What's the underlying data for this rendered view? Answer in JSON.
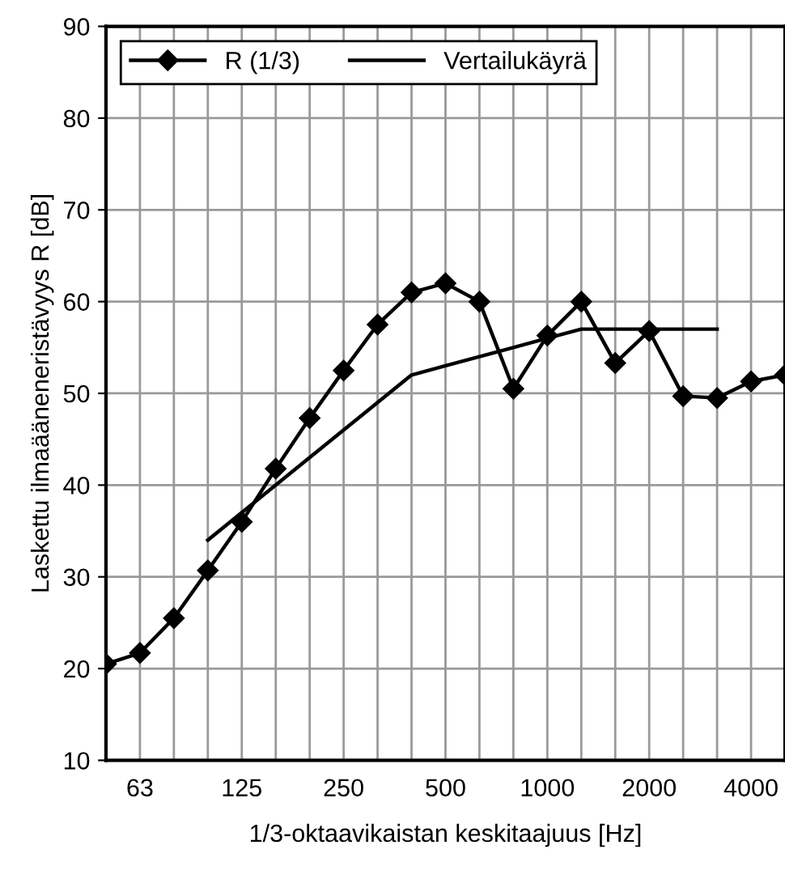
{
  "chart_data": {
    "type": "line",
    "categories": [
      null,
      "63",
      null,
      null,
      "125",
      null,
      null,
      "250",
      null,
      null,
      "500",
      null,
      null,
      "1000",
      null,
      null,
      "2000",
      null,
      null,
      "4000",
      null
    ],
    "xlabel": "1/3-oktaavikaistan keskitaajuus [Hz]",
    "ylabel": "Laskettu ilmaääneneristävyys R [dB]",
    "ylim": [
      10,
      90
    ],
    "yticks": [
      10,
      20,
      30,
      40,
      50,
      60,
      70,
      80,
      90
    ],
    "grid": true,
    "legend": "top left",
    "series": [
      {
        "name": "R (1/3)",
        "color": "#000000",
        "marker": "diamond",
        "values": [
          20.5,
          21.7,
          25.5,
          30.7,
          36,
          41.8,
          47.3,
          52.5,
          57.5,
          61,
          62,
          60,
          50.5,
          56.3,
          60,
          53.3,
          56.8,
          49.7,
          49.5,
          51.3,
          52
        ]
      },
      {
        "name": "Vertailukäyrä",
        "color": "#000000",
        "marker": "none",
        "values": [
          null,
          null,
          null,
          34,
          37,
          40,
          43,
          46,
          49,
          52,
          53,
          54,
          55,
          56,
          57,
          57,
          57,
          57,
          57,
          null,
          null
        ]
      }
    ]
  }
}
